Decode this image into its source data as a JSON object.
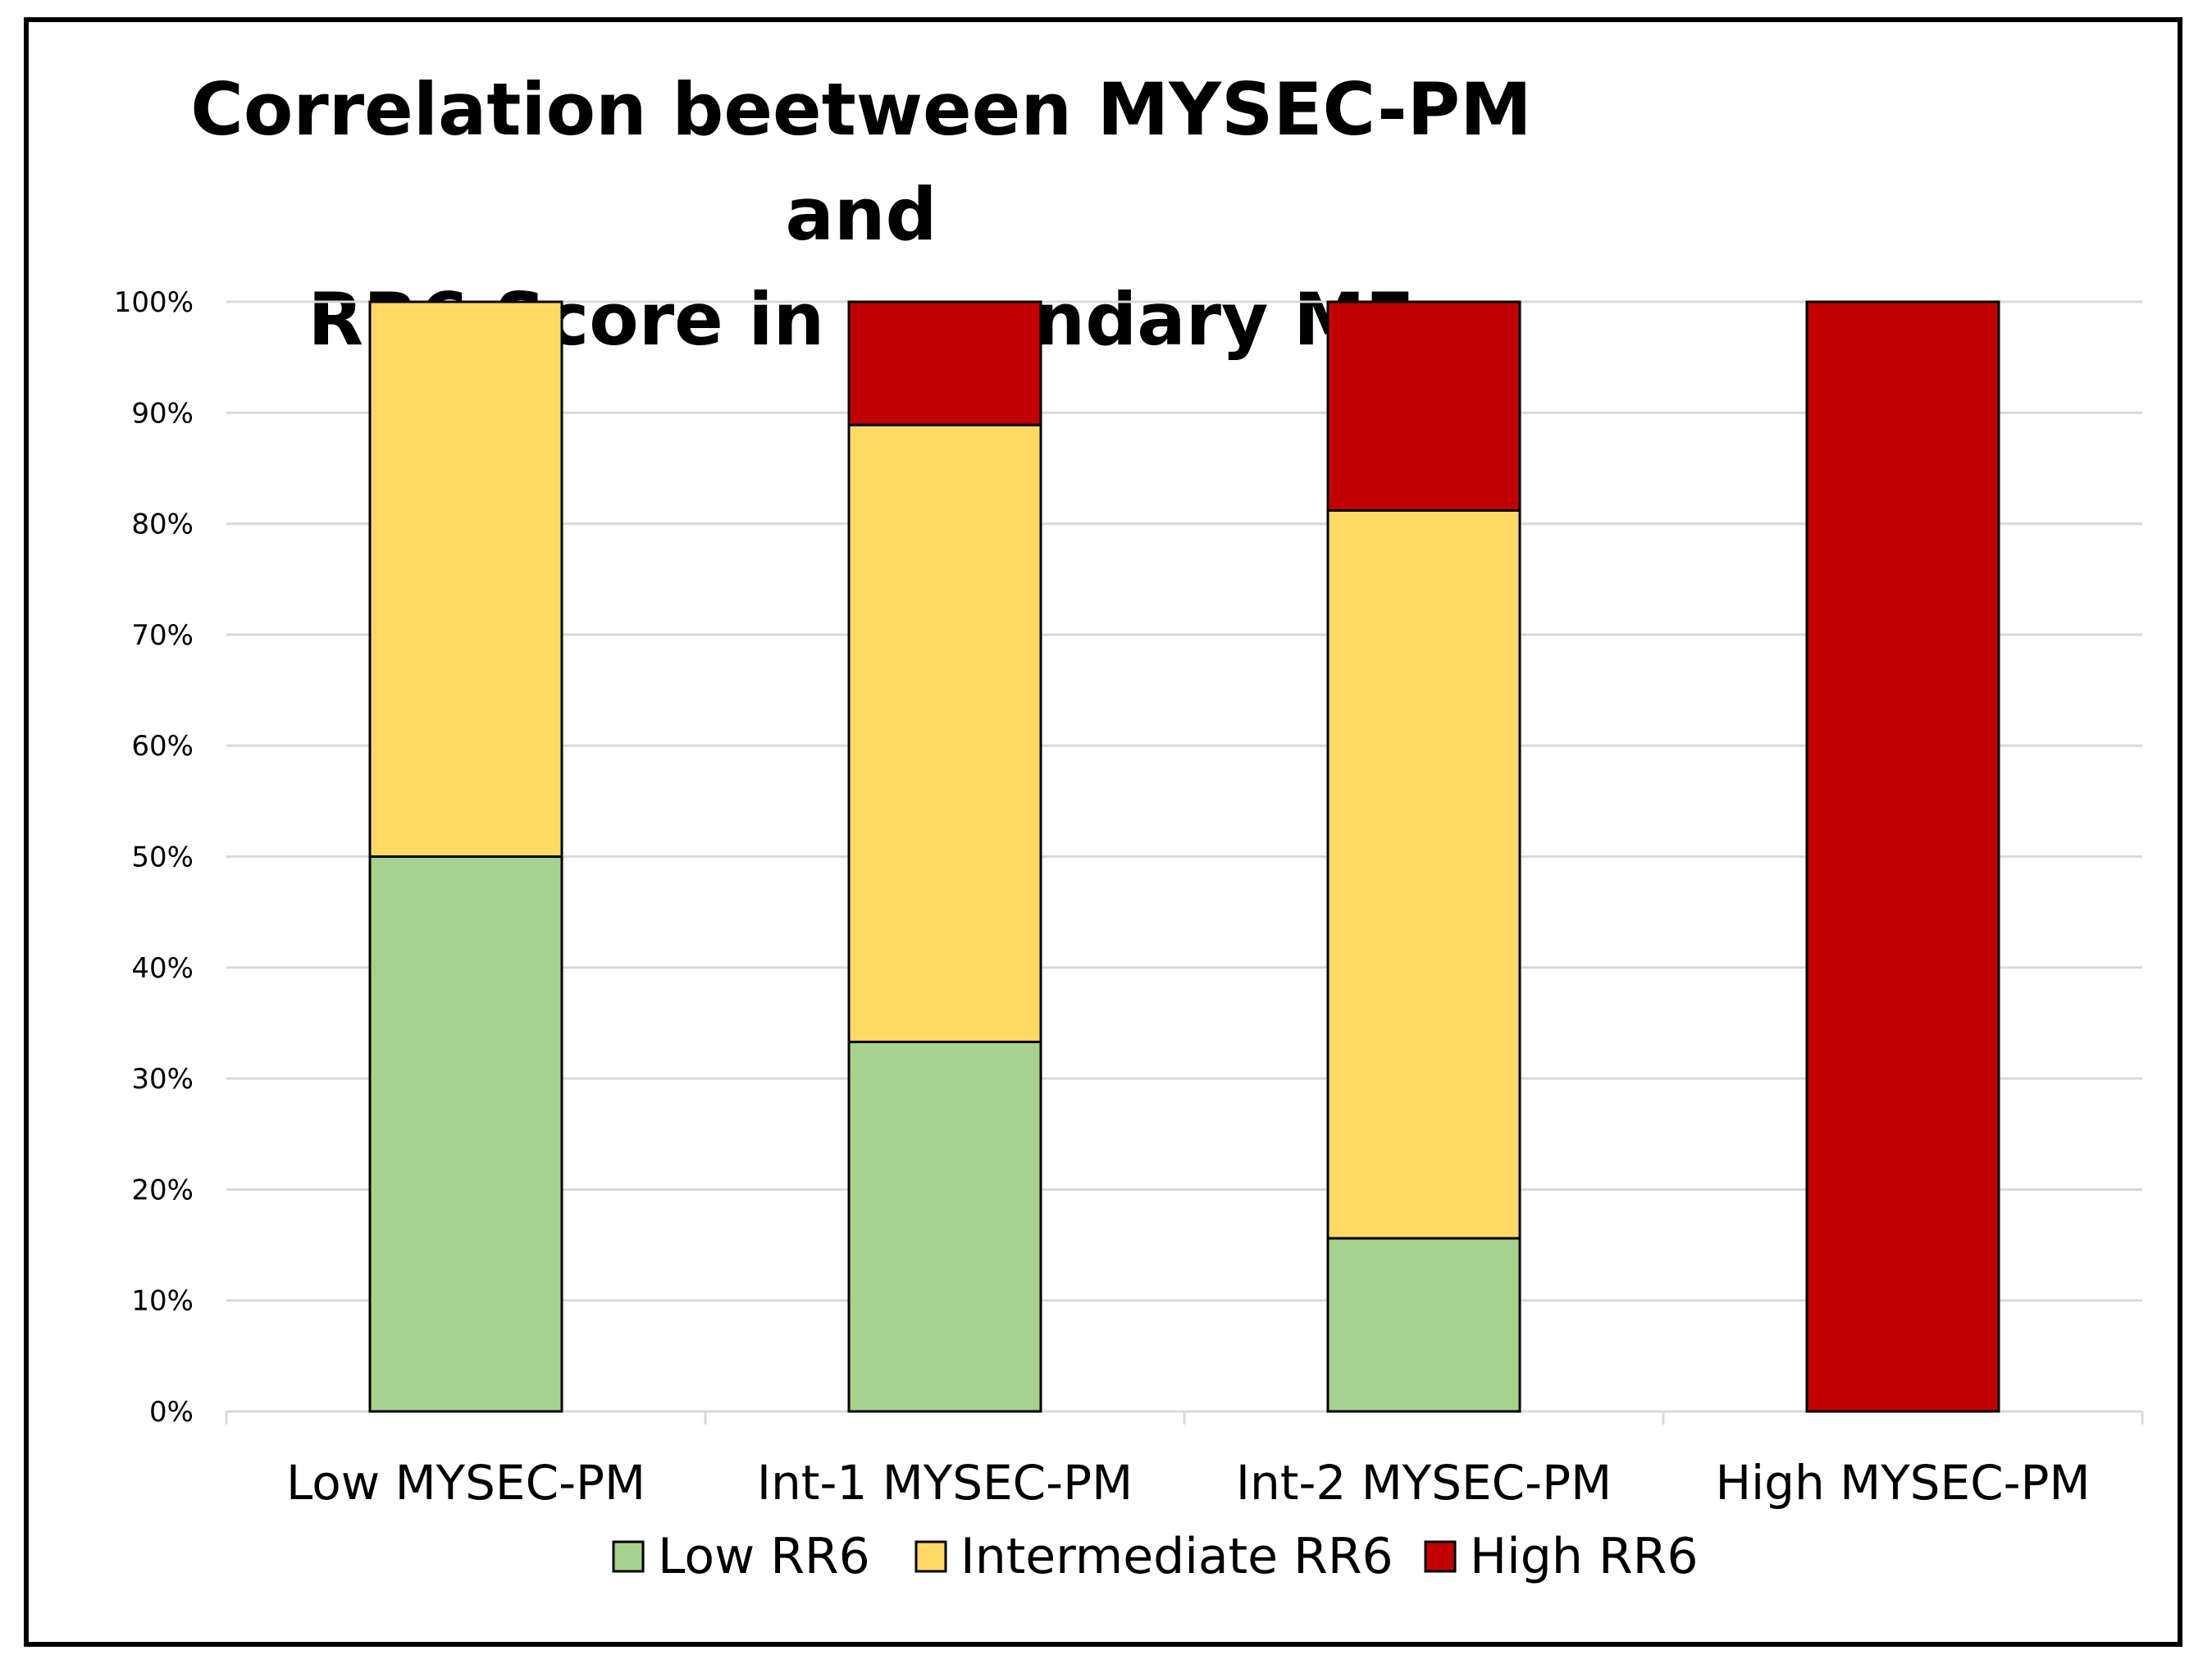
{
  "chart_data": {
    "type": "bar",
    "stacked": true,
    "title": "Correlation beetween MYSEC-PM and RR6 Score in secondary MF",
    "title_lines": [
      "Correlation beetween MYSEC-PM and",
      "RR6 Score in secondary MF"
    ],
    "xlabel": "",
    "ylabel": "",
    "ylim": [
      0,
      100
    ],
    "y_ticks": [
      "0%",
      "10%",
      "20%",
      "30%",
      "40%",
      "50%",
      "60%",
      "70%",
      "80%",
      "90%",
      "100%"
    ],
    "categories": [
      "Low MYSEC-PM",
      "Int-1 MYSEC-PM",
      "Int-2 MYSEC-PM",
      "High MYSEC-PM"
    ],
    "series": [
      {
        "name": "Low RR6",
        "color": "#a9d18e",
        "values": [
          50,
          33.3,
          15.6,
          0
        ]
      },
      {
        "name": "Intermediate RR6",
        "color": "#ffd966",
        "values": [
          50,
          55.6,
          65.6,
          0
        ]
      },
      {
        "name": "High RR6",
        "color": "#c00000",
        "values": [
          0,
          11.1,
          18.8,
          100
        ]
      }
    ],
    "grid": true,
    "legend_position": "bottom"
  }
}
